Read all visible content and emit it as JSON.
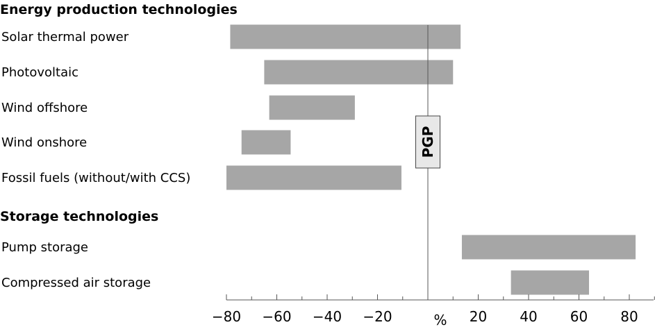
{
  "chart_data": {
    "type": "bar",
    "orientation": "horizontal-floating",
    "xlabel": "%",
    "xlim": [
      -80,
      90
    ],
    "xticks": [
      -80,
      -60,
      -40,
      -20,
      0,
      20,
      40,
      60,
      80
    ],
    "xtick_labels": [
      "−80",
      "−60",
      "−40",
      "−20",
      "",
      "20",
      "40",
      "60",
      "80"
    ],
    "reference_line": {
      "value": 0,
      "label": "PGP"
    },
    "bar_color": "#a6a6a6",
    "groups": [
      {
        "title": "Energy production technologies",
        "items": [
          {
            "label": "Solar thermal power",
            "min": -78.5,
            "max": 13
          },
          {
            "label": "Photovoltaic",
            "min": -65,
            "max": 10
          },
          {
            "label": "Wind offshore",
            "min": -63,
            "max": -29
          },
          {
            "label": "Wind onshore",
            "min": -74,
            "max": -54.5
          },
          {
            "label": "Fossil fuels (without/with CCS)",
            "min": -80,
            "max": -10.5
          }
        ]
      },
      {
        "title": "Storage technologies",
        "items": [
          {
            "label": "Pump storage",
            "min": 13.5,
            "max": 82.5
          },
          {
            "label": "Compressed air storage",
            "min": 33,
            "max": 64
          }
        ]
      }
    ]
  }
}
